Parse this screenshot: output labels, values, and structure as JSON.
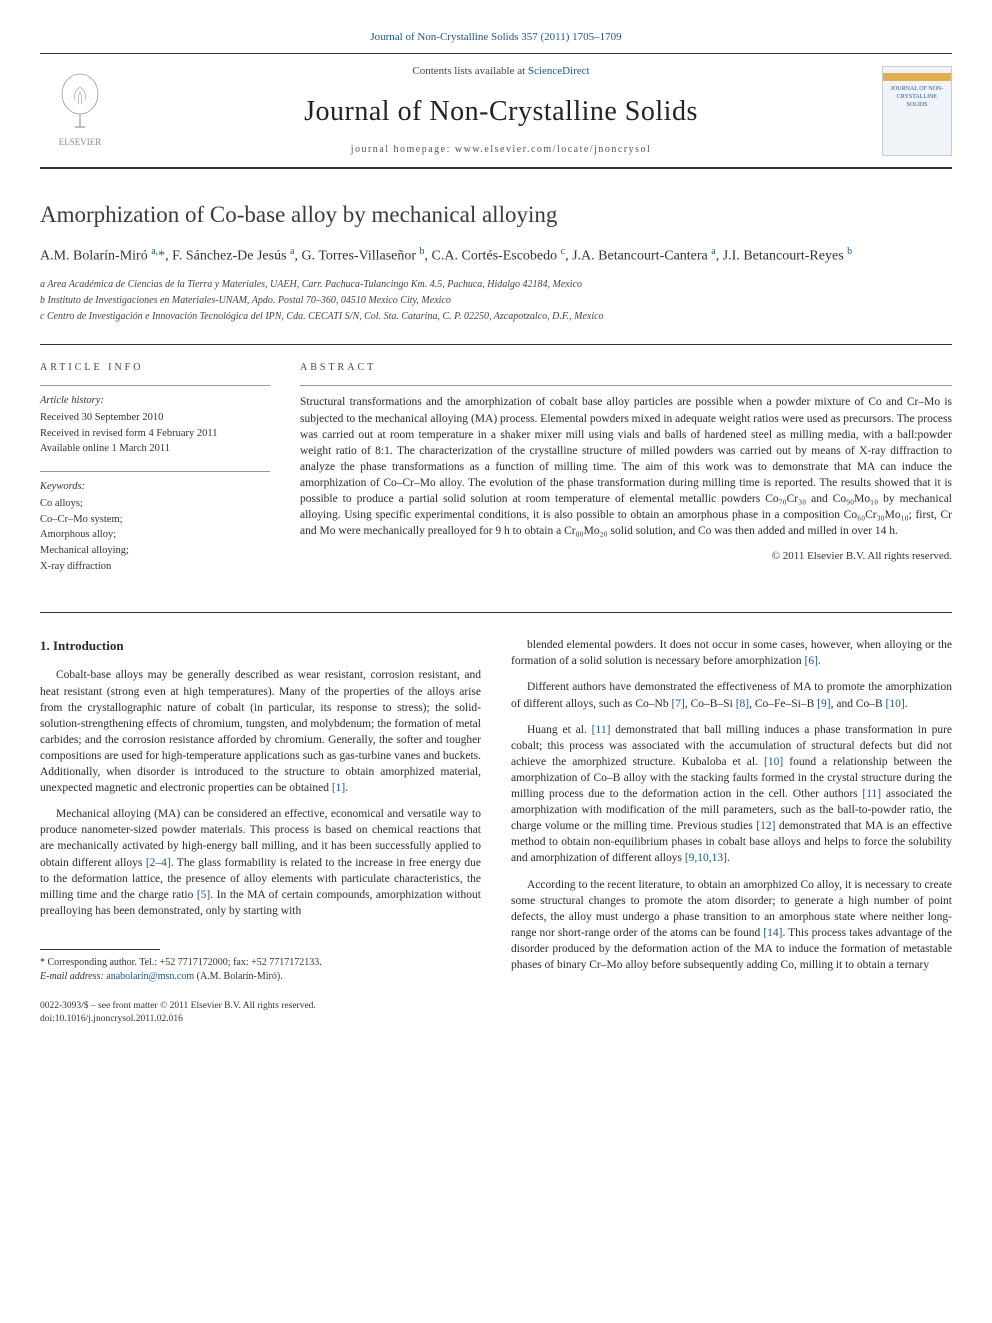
{
  "journal_ref_text": "Journal of Non-Crystalline Solids 357 (2011) 1705–1709",
  "header": {
    "contents_prefix": "Contents lists available at ",
    "contents_link": "ScienceDirect",
    "journal_name": "Journal of Non-Crystalline Solids",
    "homepage": "journal homepage: www.elsevier.com/locate/jnoncrysol",
    "elsevier_label": "ELSEVIER",
    "cover_label": "JOURNAL OF NON-CRYSTALLINE SOLIDS"
  },
  "title": "Amorphization of Co-base alloy by mechanical alloying",
  "authors_html": "A.M. Bolarín-Miró <sup>a,</sup><span class='star'>*</span>, F. Sánchez-De Jesús <sup>a</sup>, G. Torres-Villaseñor <sup>b</sup>, C.A. Cortés-Escobedo <sup>c</sup>, J.A. Betancourt-Cantera <sup>a</sup>, J.I. Betancourt-Reyes <sup>b</sup>",
  "affiliations": [
    "a Area Académica de Ciencias de la Tierra y Materiales, UAEH, Carr. Pachuca-Tulancingo Km. 4.5, Pachuca, Hidalgo 42184, Mexico",
    "b Instituto de Investigaciones en Materiales-UNAM, Apdo. Postal 70–360, 04510 Mexico City, Mexico",
    "c Centro de Investigación e Innovación Tecnológica del IPN, Cda. CECATI S/N, Col. Sta. Catarina, C. P. 02250, Azcapotzalco, D.F., Mexico"
  ],
  "article_info_label": "article info",
  "abstract_label": "abstract",
  "history": {
    "label": "Article history:",
    "received": "Received 30 September 2010",
    "revised": "Received in revised form 4 February 2011",
    "online": "Available online 1 March 2011"
  },
  "keywords": {
    "label": "Keywords:",
    "items": [
      "Co alloys;",
      "Co–Cr–Mo system;",
      "Amorphous alloy;",
      "Mechanical alloying;",
      "X-ray diffraction"
    ]
  },
  "abstract_text": "Structural transformations and the amorphization of cobalt base alloy particles are possible when a powder mixture of Co and Cr–Mo is subjected to the mechanical alloying (MA) process. Elemental powders mixed in adequate weight ratios were used as precursors. The process was carried out at room temperature in a shaker mixer mill using vials and balls of hardened steel as milling media, with a ball:powder weight ratio of 8:1. The characterization of the crystalline structure of milled powders was carried out by means of X-ray diffraction to analyze the phase transformations as a function of milling time. The aim of this work was to demonstrate that MA can induce the amorphization of Co–Cr–Mo alloy. The evolution of the phase transformation during milling time is reported. The results showed that it is possible to produce a partial solid solution at room temperature of elemental metallic powders Co₇₀Cr₃₀ and Co₉₀Mo₁₀ by mechanical alloying. Using specific experimental conditions, it is also possible to obtain an amorphous phase in a composition Co₆₀Cr₃₀Mo₁₀; first, Cr and Mo were mechanically prealloyed for 9 h to obtain a Cr₈₀Mo₂₀ solid solution, and Co was then added and milled in over 14 h.",
  "copyright": "© 2011 Elsevier B.V. All rights reserved.",
  "section_heading": "1. Introduction",
  "body": {
    "col1": [
      "Cobalt-base alloys may be generally described as wear resistant, corrosion resistant, and heat resistant (strong even at high temperatures). Many of the properties of the alloys arise from the crystallographic nature of cobalt (in particular, its response to stress); the solid-solution-strengthening effects of chromium, tungsten, and molybdenum; the formation of metal carbides; and the corrosion resistance afforded by chromium. Generally, the softer and tougher compositions are used for high-temperature applications such as gas-turbine vanes and buckets. Additionally, when disorder is introduced to the structure to obtain amorphized material, unexpected magnetic and electronic properties can be obtained [1].",
      "Mechanical alloying (MA) can be considered an effective, economical and versatile way to produce nanometer-sized powder materials. This process is based on chemical reactions that are mechanically activated by high-energy ball milling, and it has been successfully applied to obtain different alloys [2–4]. The glass formability is related to the increase in free energy due to the deformation lattice, the presence of alloy elements with particulate characteristics, the milling time and the charge ratio [5]. In the MA of certain compounds, amorphization without prealloying has been demonstrated, only by starting with"
    ],
    "col2": [
      "blended elemental powders. It does not occur in some cases, however, when alloying or the formation of a solid solution is necessary before amorphization [6].",
      "Different authors have demonstrated the effectiveness of MA to promote the amorphization of different alloys, such as Co–Nb [7], Co–B–Si [8], Co–Fe–Si–B [9], and Co–B [10].",
      "Huang et al. [11] demonstrated that ball milling induces a phase transformation in pure cobalt; this process was associated with the accumulation of structural defects but did not achieve the amorphized structure. Kubaloba et al. [10] found a relationship between the amorphization of Co–B alloy with the stacking faults formed in the crystal structure during the milling process due to the deformation action in the cell. Other authors [11] associated the amorphization with modification of the mill parameters, such as the ball-to-powder ratio, the charge volume or the milling time. Previous studies [12] demonstrated that MA is an effective method to obtain non-equilibrium phases in cobalt base alloys and helps to force the solubility and amorphization of different alloys [9,10,13].",
      "According to the recent literature, to obtain an amorphized Co alloy, it is necessary to create some structural changes to promote the atom disorder; to generate a high number of point defects, the alloy must undergo a phase transition to an amorphous state where neither long-range nor short-range order of the atoms can be found [14]. This process takes advantage of the disorder produced by the deformation action of the MA to induce the formation of metastable phases of binary Cr–Mo alloy before subsequently adding Co, milling it to obtain a ternary"
    ]
  },
  "footnote": {
    "corr": "* Corresponding author. Tel.: +52 7717172000; fax: +52 7717172133.",
    "email_label": "E-mail address:",
    "email": "anabolarin@msn.com",
    "email_person": "(A.M. Bolarín-Miró)."
  },
  "bottom": {
    "issn": "0022-3093/$ – see front matter © 2011 Elsevier B.V. All rights reserved.",
    "doi": "doi:10.1016/j.jnoncrysol.2011.02.016"
  },
  "refs_inline": {
    "r1": "[1]",
    "r24": "[2–4]",
    "r5": "[5]",
    "r6": "[6]",
    "r7": "[7]",
    "r8": "[8]",
    "r9": "[9]",
    "r10": "[10]",
    "r11": "[11]",
    "r12": "[12]",
    "r91013": "[9,10,13]",
    "r14": "[14]"
  },
  "colors": {
    "link": "#1a5490",
    "text": "#2a2a2a",
    "rule": "#333333"
  }
}
